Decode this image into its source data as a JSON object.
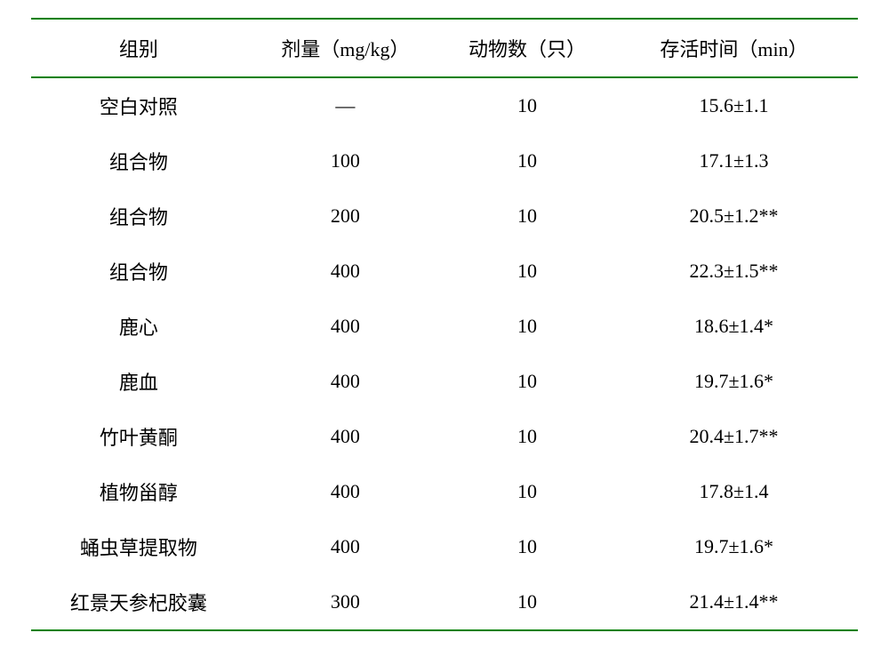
{
  "table": {
    "type": "table",
    "border_color": "#008000",
    "border_width": 2,
    "background_color": "#ffffff",
    "text_color": "#000000",
    "font_family": "SimSun",
    "header_fontsize": 22,
    "cell_fontsize": 22,
    "columns": [
      {
        "label": "组别",
        "width": "26%",
        "align": "center"
      },
      {
        "label": "剂量（mg/kg）",
        "width": "24%",
        "align": "center"
      },
      {
        "label": "动物数（只）",
        "width": "20%",
        "align": "center"
      },
      {
        "label": "存活时间（min）",
        "width": "30%",
        "align": "center"
      }
    ],
    "rows": [
      {
        "group": "空白对照",
        "dose": "—",
        "animals": "10",
        "survival": "15.6±1.1"
      },
      {
        "group": "组合物",
        "dose": "100",
        "animals": "10",
        "survival": "17.1±1.3"
      },
      {
        "group": "组合物",
        "dose": "200",
        "animals": "10",
        "survival": "20.5±1.2**"
      },
      {
        "group": "组合物",
        "dose": "400",
        "animals": "10",
        "survival": "22.3±1.5**"
      },
      {
        "group": "鹿心",
        "dose": "400",
        "animals": "10",
        "survival": "18.6±1.4*"
      },
      {
        "group": "鹿血",
        "dose": "400",
        "animals": "10",
        "survival": "19.7±1.6*"
      },
      {
        "group": "竹叶黄酮",
        "dose": "400",
        "animals": "10",
        "survival": "20.4±1.7**"
      },
      {
        "group": "植物甾醇",
        "dose": "400",
        "animals": "10",
        "survival": "17.8±1.4"
      },
      {
        "group": "蛹虫草提取物",
        "dose": "400",
        "animals": "10",
        "survival": "19.7±1.6*"
      },
      {
        "group": "红景天参杞胶囊",
        "dose": "300",
        "animals": "10",
        "survival": "21.4±1.4**"
      }
    ]
  }
}
